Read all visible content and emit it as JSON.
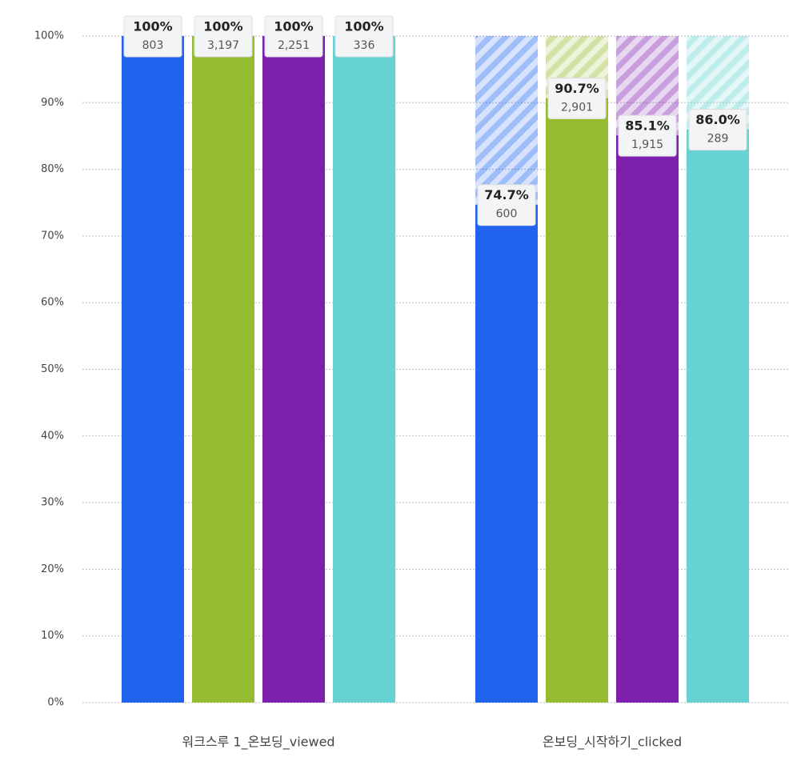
{
  "chart_data": {
    "type": "funnel-bar",
    "categories": [
      "워크스루 1_온보딩_viewed",
      "온보딩_시작하기_clicked"
    ],
    "series": [
      {
        "color": "#1f63ef",
        "values": [
          100,
          74.7
        ],
        "value_labels": [
          "100%",
          "74.7%"
        ],
        "counts": [
          803,
          600
        ],
        "count_labels": [
          "803",
          "600"
        ]
      },
      {
        "color": "#95bb30",
        "values": [
          100,
          90.7
        ],
        "value_labels": [
          "100%",
          "90.7%"
        ],
        "counts": [
          3197,
          2901
        ],
        "count_labels": [
          "3,197",
          "2,901"
        ]
      },
      {
        "color": "#7d1fad",
        "values": [
          100,
          85.1
        ],
        "value_labels": [
          "100%",
          "85.1%"
        ],
        "counts": [
          2251,
          1915
        ],
        "count_labels": [
          "2,251",
          "1,915"
        ]
      },
      {
        "color": "#66d2d4",
        "values": [
          100,
          86.0
        ],
        "value_labels": [
          "100%",
          "86.0%"
        ],
        "counts": [
          336,
          289
        ],
        "count_labels": [
          "336",
          "289"
        ]
      }
    ],
    "ylim": [
      0,
      100
    ],
    "yticks": [
      {
        "value": 0,
        "label": "0%"
      },
      {
        "value": 10,
        "label": "10%"
      },
      {
        "value": 20,
        "label": "20%"
      },
      {
        "value": 30,
        "label": "30%"
      },
      {
        "value": 40,
        "label": "40%"
      },
      {
        "value": 50,
        "label": "50%"
      },
      {
        "value": 60,
        "label": "60%"
      },
      {
        "value": 70,
        "label": "70%"
      },
      {
        "value": 80,
        "label": "80%"
      },
      {
        "value": 90,
        "label": "90%"
      },
      {
        "value": 100,
        "label": "100%"
      }
    ],
    "grid": true
  }
}
